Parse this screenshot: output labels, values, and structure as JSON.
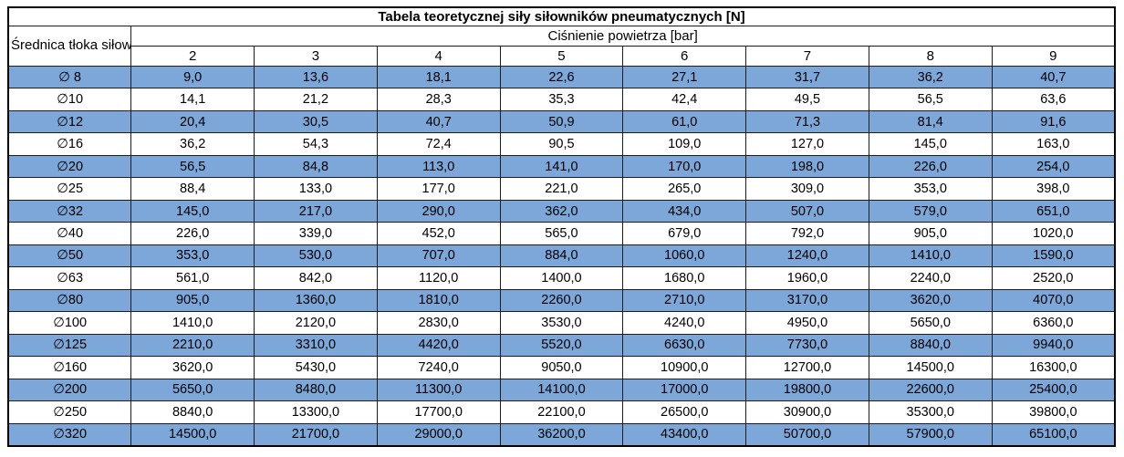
{
  "chart_data": {
    "type": "table",
    "title": "Tabela teoretycznej siły siłowników pneumatycznych [N]",
    "row_header_label": "Średnica tłoka siłownika",
    "column_group_label": "Ciśnienie powietrza [bar]",
    "pressure_columns": [
      "2",
      "3",
      "4",
      "5",
      "6",
      "7",
      "8",
      "9"
    ],
    "rows": [
      {
        "diameter": "∅ 8",
        "values": [
          "9,0",
          "13,6",
          "18,1",
          "22,6",
          "27,1",
          "31,7",
          "36,2",
          "40,7"
        ]
      },
      {
        "diameter": "∅10",
        "values": [
          "14,1",
          "21,2",
          "28,3",
          "35,3",
          "42,4",
          "49,5",
          "56,5",
          "63,6"
        ]
      },
      {
        "diameter": "∅12",
        "values": [
          "20,4",
          "30,5",
          "40,7",
          "50,9",
          "61,0",
          "71,3",
          "81,4",
          "91,6"
        ]
      },
      {
        "diameter": "∅16",
        "values": [
          "36,2",
          "54,3",
          "72,4",
          "90,5",
          "109,0",
          "127,0",
          "145,0",
          "163,0"
        ]
      },
      {
        "diameter": "∅20",
        "values": [
          "56,5",
          "84,8",
          "113,0",
          "141,0",
          "170,0",
          "198,0",
          "226,0",
          "254,0"
        ]
      },
      {
        "diameter": "∅25",
        "values": [
          "88,4",
          "133,0",
          "177,0",
          "221,0",
          "265,0",
          "309,0",
          "353,0",
          "398,0"
        ]
      },
      {
        "diameter": "∅32",
        "values": [
          "145,0",
          "217,0",
          "290,0",
          "362,0",
          "434,0",
          "507,0",
          "579,0",
          "651,0"
        ]
      },
      {
        "diameter": "∅40",
        "values": [
          "226,0",
          "339,0",
          "452,0",
          "565,0",
          "679,0",
          "792,0",
          "905,0",
          "1020,0"
        ]
      },
      {
        "diameter": "∅50",
        "values": [
          "353,0",
          "530,0",
          "707,0",
          "884,0",
          "1060,0",
          "1240,0",
          "1410,0",
          "1590,0"
        ]
      },
      {
        "diameter": "∅63",
        "values": [
          "561,0",
          "842,0",
          "1120,0",
          "1400,0",
          "1680,0",
          "1960,0",
          "2240,0",
          "2520,0"
        ]
      },
      {
        "diameter": "∅80",
        "values": [
          "905,0",
          "1360,0",
          "1810,0",
          "2260,0",
          "2710,0",
          "3170,0",
          "3620,0",
          "4070,0"
        ]
      },
      {
        "diameter": "∅100",
        "values": [
          "1410,0",
          "2120,0",
          "2830,0",
          "3530,0",
          "4240,0",
          "4950,0",
          "5650,0",
          "6360,0"
        ]
      },
      {
        "diameter": "∅125",
        "values": [
          "2210,0",
          "3310,0",
          "4420,0",
          "5520,0",
          "6630,0",
          "7730,0",
          "8840,0",
          "9940,0"
        ]
      },
      {
        "diameter": "∅160",
        "values": [
          "3620,0",
          "5430,0",
          "7240,0",
          "9050,0",
          "10900,0",
          "12700,0",
          "14500,0",
          "16300,0"
        ]
      },
      {
        "diameter": "∅200",
        "values": [
          "5650,0",
          "8480,0",
          "11300,0",
          "14100,0",
          "17000,0",
          "19800,0",
          "22600,0",
          "25400,0"
        ]
      },
      {
        "diameter": "∅250",
        "values": [
          "8840,0",
          "13300,0",
          "17700,0",
          "22100,0",
          "26500,0",
          "30900,0",
          "35300,0",
          "39800,0"
        ]
      },
      {
        "diameter": "∅320",
        "values": [
          "14500,0",
          "21700,0",
          "29000,0",
          "36200,0",
          "43400,0",
          "50700,0",
          "57900,0",
          "65100,0"
        ]
      }
    ],
    "layout": {
      "shading": "alternating rows starting with first data row shaded",
      "row_shaded_fill": "#7da6d9",
      "row_plain_fill": "#ffffff",
      "border_color": "#1c1c1c",
      "outer_border_color": "#000000",
      "text_color": "#000000"
    }
  }
}
